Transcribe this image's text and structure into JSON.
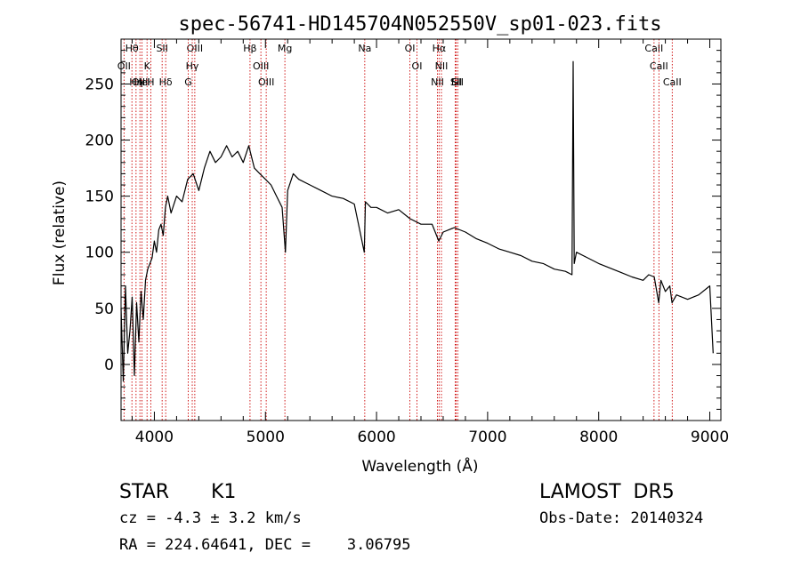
{
  "chart_data": {
    "type": "line",
    "title": "spec-56741-HD145704N052550V_sp01-023.fits",
    "xlabel": "Wavelength (Å)",
    "ylabel": "Flux (relative)",
    "xlim": [
      3700,
      9100
    ],
    "ylim": [
      -50,
      290
    ],
    "x_ticks": [
      4000,
      5000,
      6000,
      7000,
      8000,
      9000
    ],
    "y_ticks": [
      0,
      50,
      100,
      150,
      200,
      250
    ],
    "grid": false,
    "series": [
      {
        "color": "#000000",
        "x": [
          3700,
          3720,
          3740,
          3760,
          3780,
          3800,
          3820,
          3840,
          3860,
          3880,
          3900,
          3920,
          3940,
          3960,
          3980,
          4000,
          4020,
          4040,
          4060,
          4080,
          4100,
          4120,
          4150,
          4200,
          4250,
          4300,
          4350,
          4400,
          4450,
          4500,
          4550,
          4600,
          4650,
          4700,
          4750,
          4800,
          4850,
          4900,
          4950,
          5000,
          5050,
          5100,
          5150,
          5180,
          5200,
          5250,
          5300,
          5400,
          5500,
          5600,
          5700,
          5800,
          5890,
          5900,
          5950,
          6000,
          6100,
          6200,
          6300,
          6400,
          6500,
          6560,
          6600,
          6700,
          6800,
          6900,
          7000,
          7100,
          7200,
          7300,
          7400,
          7500,
          7600,
          7700,
          7760,
          7770,
          7780,
          7800,
          7900,
          8000,
          8100,
          8200,
          8300,
          8400,
          8450,
          8500,
          8540,
          8560,
          8600,
          8640,
          8660,
          8700,
          8800,
          8900,
          9000,
          9030
        ],
        "y": [
          50,
          -15,
          70,
          10,
          30,
          60,
          -10,
          55,
          20,
          65,
          40,
          75,
          85,
          90,
          95,
          110,
          100,
          120,
          125,
          115,
          140,
          150,
          135,
          150,
          145,
          165,
          170,
          155,
          175,
          190,
          180,
          185,
          195,
          185,
          190,
          180,
          195,
          175,
          170,
          165,
          160,
          150,
          140,
          100,
          155,
          170,
          165,
          160,
          155,
          150,
          148,
          143,
          100,
          145,
          140,
          140,
          135,
          138,
          130,
          125,
          125,
          110,
          118,
          122,
          118,
          112,
          108,
          103,
          100,
          97,
          92,
          90,
          85,
          83,
          80,
          270,
          90,
          100,
          95,
          90,
          86,
          82,
          78,
          75,
          80,
          78,
          55,
          75,
          65,
          70,
          55,
          62,
          58,
          62,
          70,
          10
        ]
      }
    ],
    "line_markers": [
      {
        "label": "Hθ",
        "x": 3798
      },
      {
        "label": "OII",
        "x": 3727
      },
      {
        "label": "OIII",
        "x": 3870
      },
      {
        "label": "HeI",
        "x": 3889
      },
      {
        "label": "Hη",
        "x": 3835
      },
      {
        "label": "K",
        "x": 3934
      },
      {
        "label": "H",
        "x": 3968
      },
      {
        "label": "SII",
        "x": 4070
      },
      {
        "label": "Hδ",
        "x": 4102
      },
      {
        "label": "OIII",
        "x": 4364
      },
      {
        "label": "Hγ",
        "x": 4341
      },
      {
        "label": "G",
        "x": 4305
      },
      {
        "label": "Hβ",
        "x": 4861
      },
      {
        "label": "OIII",
        "x": 4959
      },
      {
        "label": "OIII",
        "x": 5007
      },
      {
        "label": "Mg",
        "x": 5175
      },
      {
        "label": "Na",
        "x": 5894
      },
      {
        "label": "OI",
        "x": 6300
      },
      {
        "label": "OI",
        "x": 6364
      },
      {
        "label": "Hα",
        "x": 6563
      },
      {
        "label": "NII",
        "x": 6548
      },
      {
        "label": "NII",
        "x": 6584
      },
      {
        "label": "SII",
        "x": 6717
      },
      {
        "label": "Li",
        "x": 6708
      },
      {
        "label": "SII",
        "x": 6731
      },
      {
        "label": "CaII",
        "x": 8498
      },
      {
        "label": "CaII",
        "x": 8542
      },
      {
        "label": "CaII",
        "x": 8662
      }
    ]
  },
  "info": {
    "class_label": "STAR",
    "subclass": "K1",
    "survey": "LAMOST  DR5",
    "cz": "cz = -4.3 ± 3.2 km/s",
    "obs_date": "Obs-Date: 20140324",
    "radec": "RA = 224.64641, DEC =    3.06795"
  },
  "colors": {
    "spectrum": "#000000",
    "marker_line": "#cc0000",
    "background": "#ffffff"
  }
}
